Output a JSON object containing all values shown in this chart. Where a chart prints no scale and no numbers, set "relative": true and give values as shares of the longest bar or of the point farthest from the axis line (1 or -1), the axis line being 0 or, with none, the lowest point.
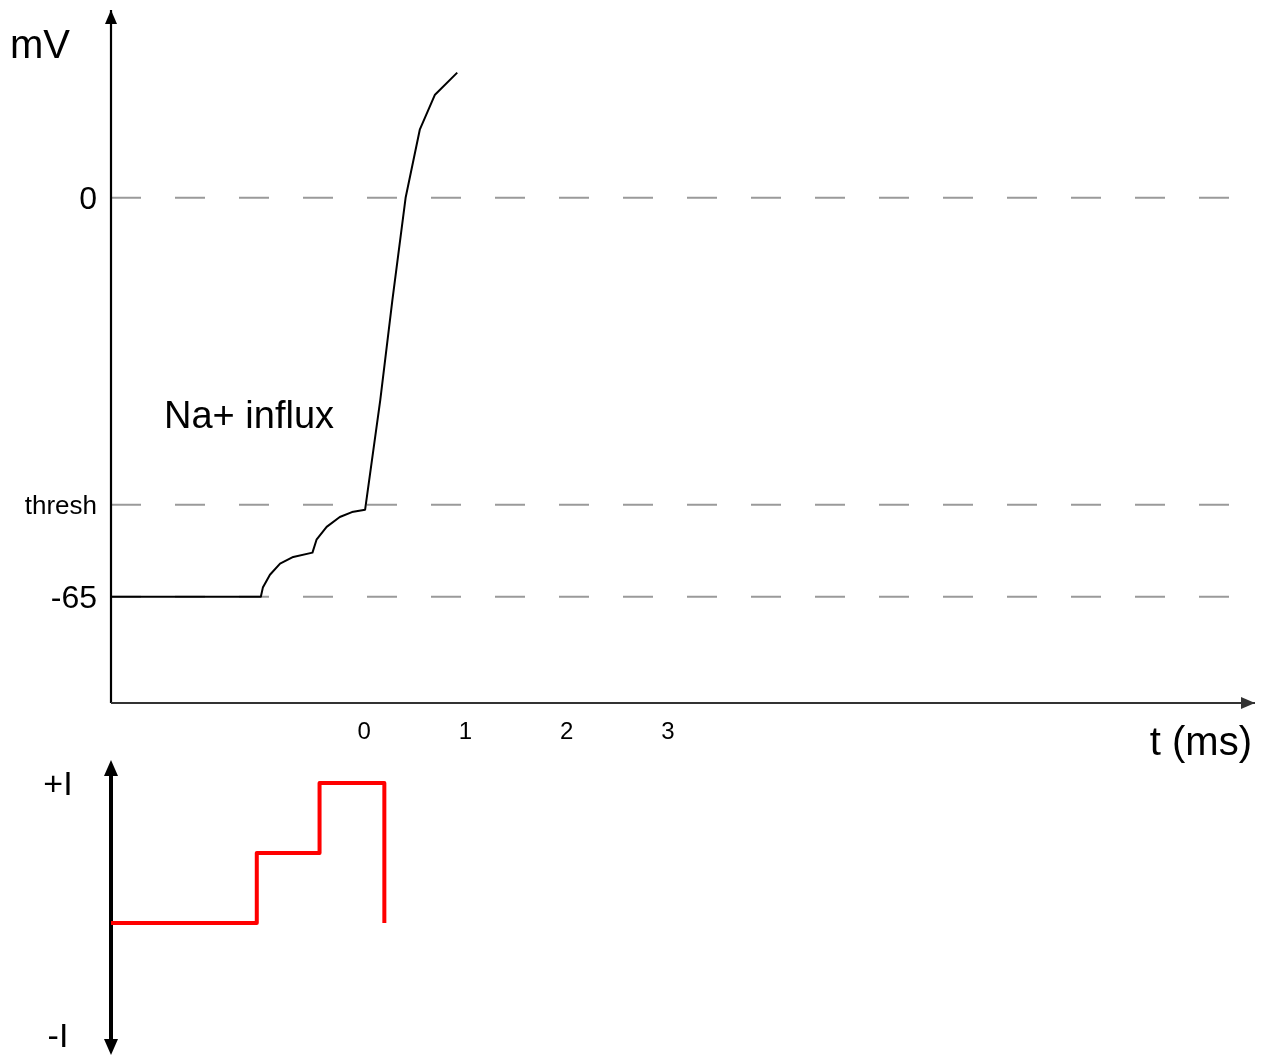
{
  "chart_data": [
    {
      "type": "line",
      "xlabel": "t (ms)",
      "ylabel": "mV",
      "annotations": [
        "Na+ influx"
      ],
      "x": [
        -2.5,
        -1.02,
        -1.0,
        -0.93,
        -0.83,
        -0.7,
        -0.51,
        -0.47,
        -0.37,
        -0.24,
        -0.12,
        0.01,
        0.16,
        0.28,
        0.41,
        0.55,
        0.7,
        0.92
      ],
      "series": [
        {
          "color": "#000000",
          "values": [
            -65,
            -65,
            -63.5,
            -61.4,
            -59.6,
            -58.5,
            -57.8,
            -55.7,
            -53.6,
            -52.0,
            -51.2,
            -50.8,
            -32.9,
            -16.6,
            0,
            11.1,
            16.8,
            20.4
          ]
        }
      ],
      "xlim": [
        -2.5,
        8.8
      ],
      "ylim": [
        -82.3,
        30.6
      ],
      "xticks": [
        0,
        1,
        2,
        3
      ],
      "yticks": [
        {
          "value": -65,
          "label": "-65"
        },
        {
          "value": -50,
          "label": "thresh"
        },
        0
      ],
      "grid": "y",
      "line_style": "solid",
      "marker": "none"
    },
    {
      "type": "step",
      "x": [
        -2.5,
        -1.06,
        -0.44,
        0.2
      ],
      "series": [
        {
          "color": "#ff0000",
          "values": [
            0,
            0.5,
            1,
            0
          ]
        }
      ],
      "annotations": [
        "+I",
        "-I"
      ],
      "xlim": [
        -2.5,
        8.8
      ],
      "relative": true,
      "tick_labels": false,
      "marker": "none"
    }
  ]
}
